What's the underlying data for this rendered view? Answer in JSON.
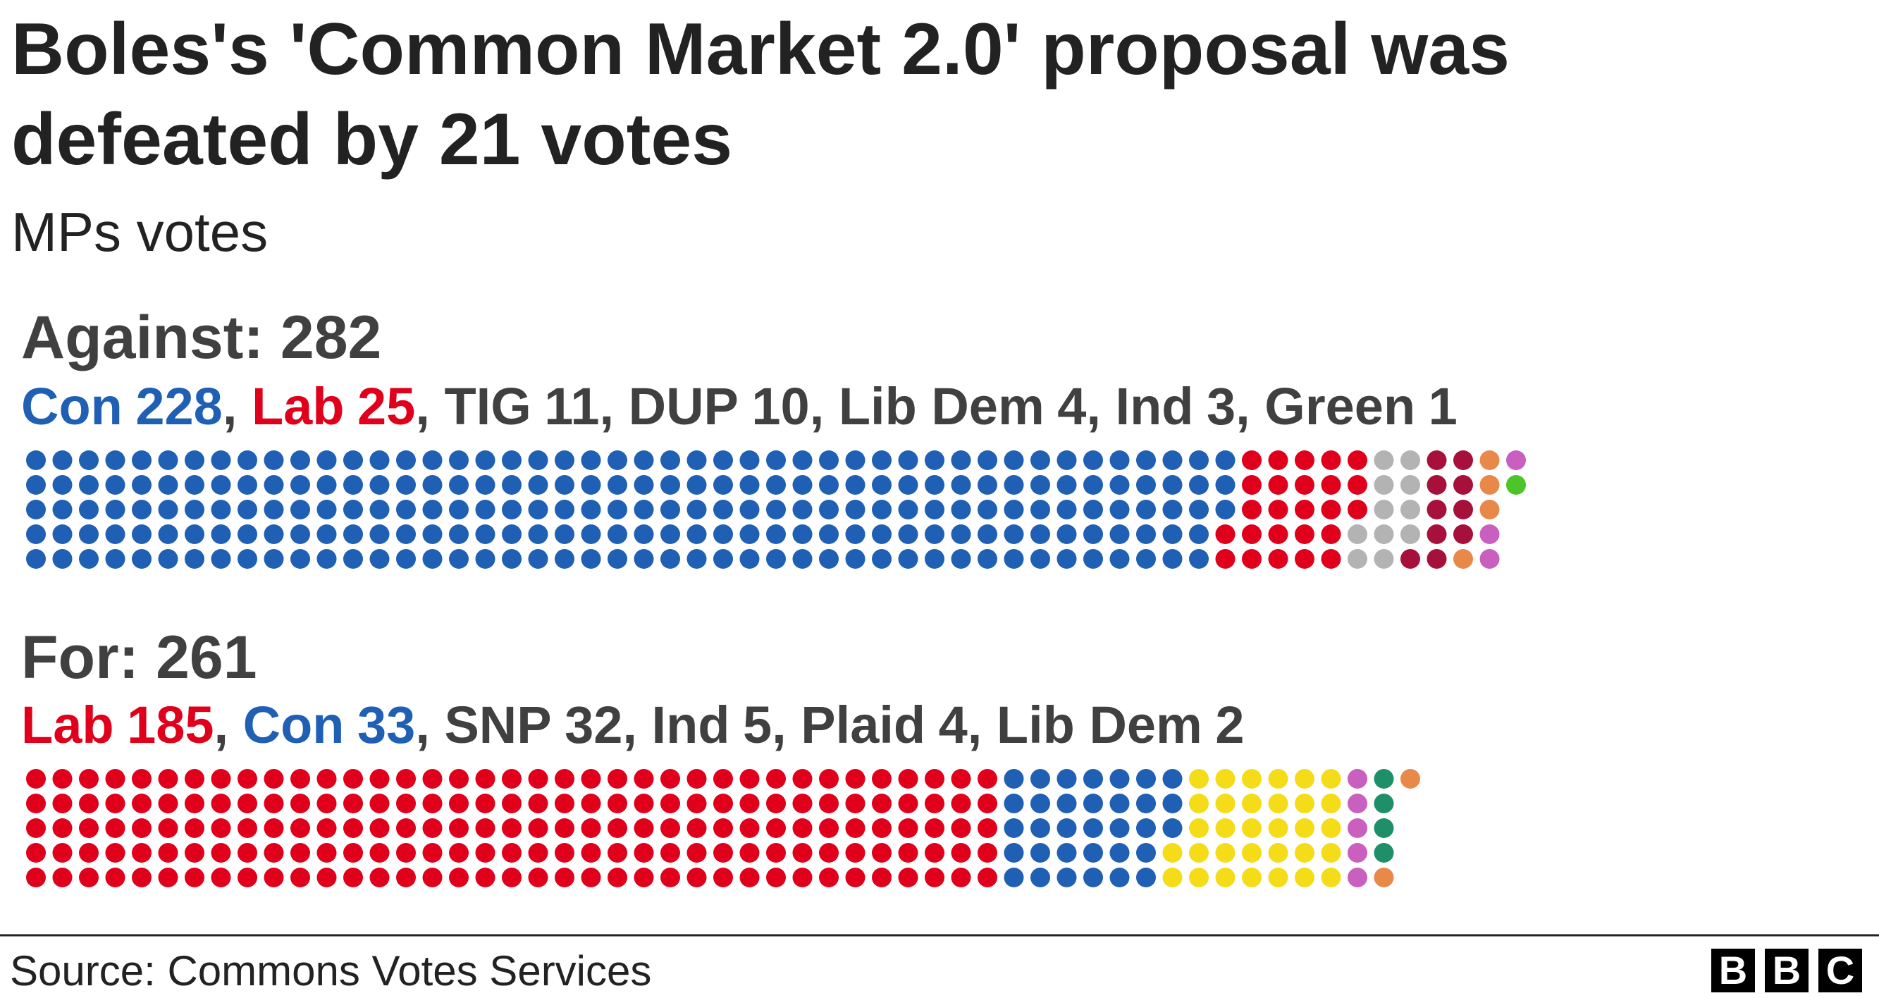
{
  "chart_data": {
    "type": "waffle",
    "title": [
      "Boles's 'Common Market 2.0' proposal was",
      "defeated by 21 votes"
    ],
    "subtitle": "MPs votes",
    "groups": [
      {
        "label": "Against: 282",
        "parties": [
          {
            "name": "Con",
            "value": 228,
            "color": "#1f5fb4",
            "highlight": true
          },
          {
            "name": "Lab",
            "value": 25,
            "color": "#e0001b",
            "highlight": true
          },
          {
            "name": "TIG",
            "value": 11,
            "color": "#b3b3b3",
            "highlight": false
          },
          {
            "name": "DUP",
            "value": 10,
            "color": "#a8103c",
            "highlight": false
          },
          {
            "name": "Lib Dem",
            "value": 4,
            "color": "#e8894a",
            "highlight": false
          },
          {
            "name": "Ind",
            "value": 3,
            "color": "#c95fbf",
            "highlight": false
          },
          {
            "name": "Green",
            "value": 1,
            "color": "#4cc42a",
            "highlight": false
          }
        ]
      },
      {
        "label": "For: 261",
        "parties": [
          {
            "name": "Lab",
            "value": 185,
            "color": "#e0001b",
            "highlight": true
          },
          {
            "name": "Con",
            "value": 33,
            "color": "#1f5fb4",
            "highlight": true
          },
          {
            "name": "SNP",
            "value": 32,
            "color": "#f5dc19",
            "highlight": false
          },
          {
            "name": "Ind",
            "value": 5,
            "color": "#c95fbf",
            "highlight": false
          },
          {
            "name": "Plaid",
            "value": 4,
            "color": "#1f8f6a",
            "highlight": false
          },
          {
            "name": "Lib Dem",
            "value": 2,
            "color": "#e8894a",
            "highlight": false
          }
        ]
      }
    ],
    "source": "Source: Commons Votes Services",
    "logo": [
      "B",
      "B",
      "C"
    ]
  }
}
